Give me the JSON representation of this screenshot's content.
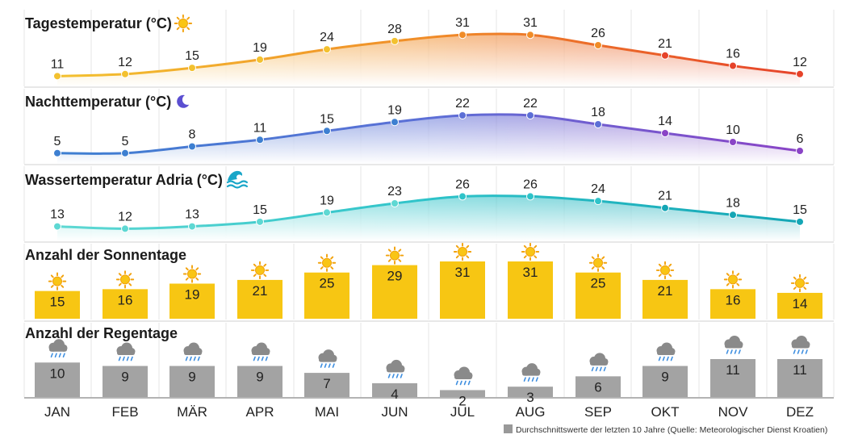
{
  "chart_data": [
    {
      "type": "line",
      "title": "Tagestemperatur (°C)",
      "title_icon": "sun-icon",
      "categories": [
        "JAN",
        "FEB",
        "MÄR",
        "APR",
        "MAI",
        "JUN",
        "JUL",
        "AUG",
        "SEP",
        "OKT",
        "NOV",
        "DEZ"
      ],
      "values": [
        11,
        12,
        15,
        19,
        24,
        28,
        31,
        31,
        26,
        21,
        16,
        12
      ],
      "ylim": [
        8,
        35
      ],
      "colors": [
        "#f3c12f",
        "#f08c28",
        "#e6432a"
      ]
    },
    {
      "type": "line",
      "title": "Nachttemperatur (°C)",
      "title_icon": "moon-icon",
      "categories": [
        "JAN",
        "FEB",
        "MÄR",
        "APR",
        "MAI",
        "JUN",
        "JUL",
        "AUG",
        "SEP",
        "OKT",
        "NOV",
        "DEZ"
      ],
      "values": [
        5,
        5,
        8,
        11,
        15,
        19,
        22,
        22,
        18,
        14,
        10,
        6
      ],
      "ylim": [
        2,
        26
      ],
      "colors": [
        "#3d7fd1",
        "#5c6fd6",
        "#8a44c6"
      ]
    },
    {
      "type": "line",
      "title": "Wassertemperatur Adria (°C)",
      "title_icon": "wave-icon",
      "categories": [
        "JAN",
        "FEB",
        "MÄR",
        "APR",
        "MAI",
        "JUN",
        "JUL",
        "AUG",
        "SEP",
        "OKT",
        "NOV",
        "DEZ"
      ],
      "values": [
        13,
        12,
        13,
        15,
        19,
        23,
        26,
        26,
        24,
        21,
        18,
        15
      ],
      "ylim": [
        9,
        30
      ],
      "colors": [
        "#5ed8d3",
        "#2ec3c9",
        "#14a6b5"
      ]
    },
    {
      "type": "bar",
      "title": "Anzahl der Sonnentage",
      "bar_icon": "sun-icon",
      "categories": [
        "JAN",
        "FEB",
        "MÄR",
        "APR",
        "MAI",
        "JUN",
        "JUL",
        "AUG",
        "SEP",
        "OKT",
        "NOV",
        "DEZ"
      ],
      "values": [
        15,
        16,
        19,
        21,
        25,
        29,
        31,
        31,
        25,
        21,
        16,
        14
      ],
      "ylim": [
        0,
        31
      ],
      "color": "#f7c613"
    },
    {
      "type": "bar",
      "title": "Anzahl der Regentage",
      "bar_icon": "rain-cloud-icon",
      "categories": [
        "JAN",
        "FEB",
        "MÄR",
        "APR",
        "MAI",
        "JUN",
        "JUL",
        "AUG",
        "SEP",
        "OKT",
        "NOV",
        "DEZ"
      ],
      "values": [
        10,
        9,
        9,
        9,
        7,
        4,
        2,
        3,
        6,
        9,
        11,
        11
      ],
      "ylim": [
        0,
        11
      ],
      "color": "#a3a3a3"
    }
  ],
  "x_labels": [
    "JAN",
    "FEB",
    "MÄR",
    "APR",
    "MAI",
    "JUN",
    "JUL",
    "AUG",
    "SEP",
    "OKT",
    "NOV",
    "DEZ"
  ],
  "footnote": "Durchschnittswerte der letzten 10 Jahre (Quelle: Meteorologischer Dienst Kroatien)",
  "footnote_icon": "legend-square-icon"
}
